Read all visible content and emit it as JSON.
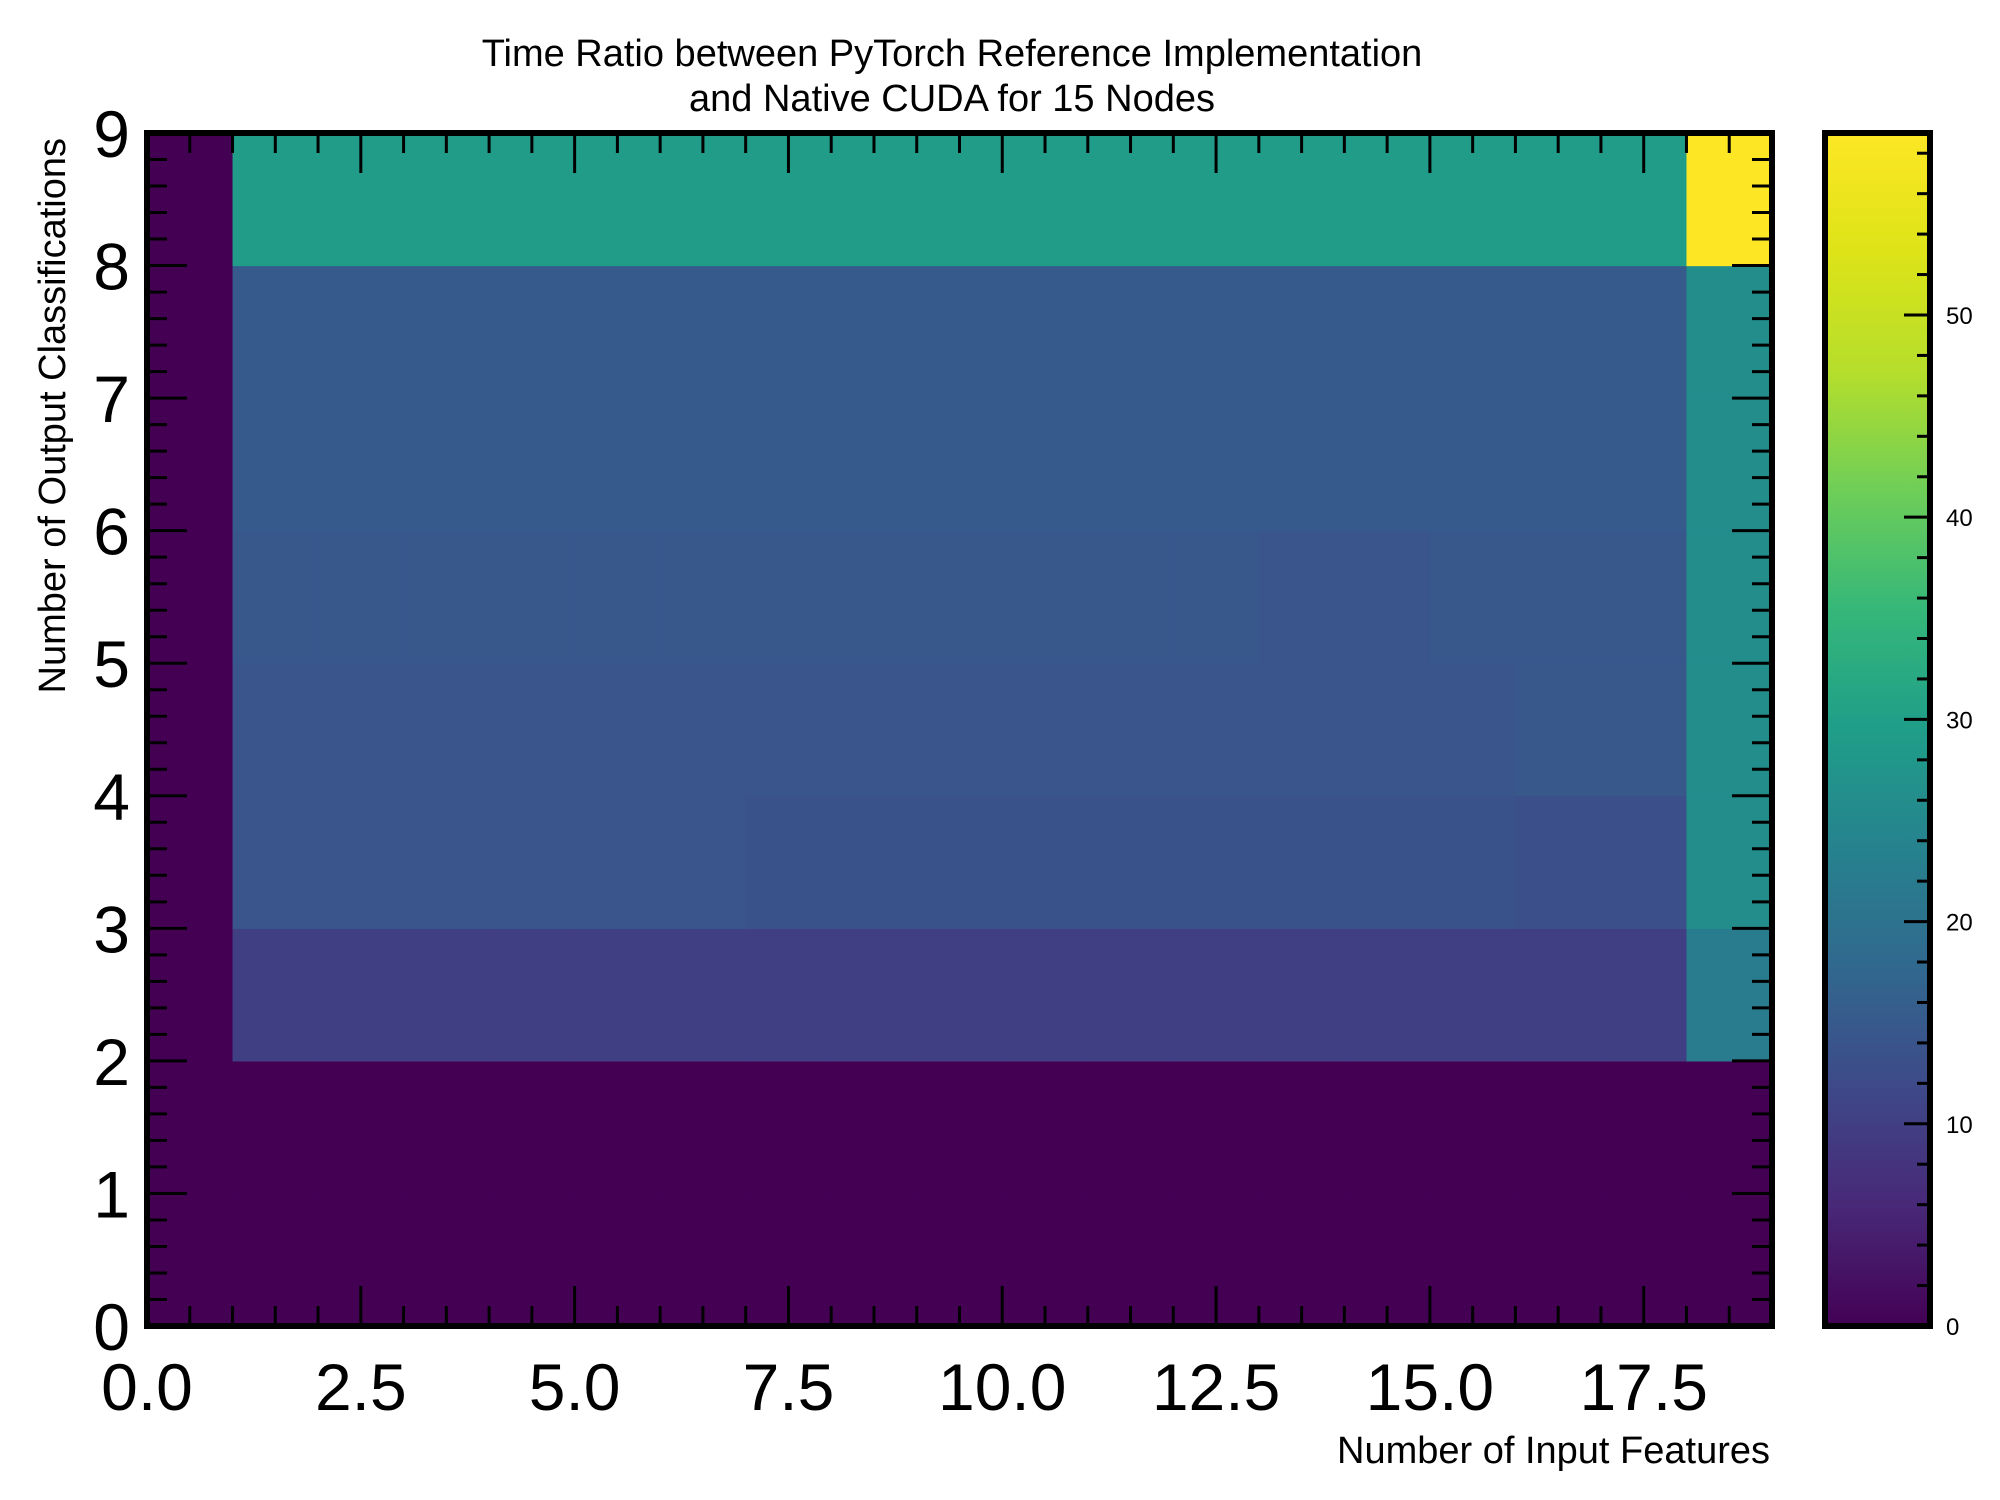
{
  "chart_data": {
    "type": "heatmap",
    "title": [
      "Time Ratio between PyTorch Reference Implementation",
      "and Native CUDA for 15 Nodes"
    ],
    "xlabel": "Number of Input Features",
    "ylabel": "Number of Output Classifications",
    "xlim": [
      0,
      19
    ],
    "ylim": [
      0,
      9
    ],
    "x_ticks": [
      "0.0",
      "2.5",
      "5.0",
      "7.5",
      "10.0",
      "12.5",
      "15.0",
      "17.5"
    ],
    "x_tick_values": [
      0,
      2.5,
      5,
      7.5,
      10,
      12.5,
      15,
      17.5
    ],
    "y_ticks": [
      "0",
      "1",
      "2",
      "3",
      "4",
      "5",
      "6",
      "7",
      "8",
      "9"
    ],
    "y_tick_values": [
      0,
      1,
      2,
      3,
      4,
      5,
      6,
      7,
      8,
      9
    ],
    "x_edges": [
      0,
      1,
      2,
      3,
      4,
      5,
      6,
      7,
      8,
      9,
      10,
      11,
      12,
      13,
      14,
      15,
      16,
      17,
      18,
      19
    ],
    "y_edges": [
      0,
      1,
      2,
      3,
      4,
      5,
      6,
      7,
      8,
      9
    ],
    "colormap": "viridis",
    "colorbar_range": [
      0,
      59
    ],
    "colorbar_ticks": [
      "0",
      "10",
      "20",
      "30",
      "40",
      "50"
    ],
    "colorbar_tick_values": [
      0,
      10,
      20,
      30,
      40,
      50
    ],
    "z_rows_bottom_to_top": [
      [
        0,
        0,
        0,
        0,
        0,
        0,
        0,
        0,
        0,
        0,
        0,
        0,
        0,
        0,
        0,
        0,
        0,
        0,
        0
      ],
      [
        0,
        0,
        0,
        0,
        0,
        0,
        0,
        0,
        0,
        0,
        0,
        0,
        0,
        0,
        0,
        0,
        0,
        0,
        0
      ],
      [
        0,
        10,
        10,
        10,
        10,
        10,
        10,
        10,
        10,
        10,
        10,
        10,
        10,
        10,
        10,
        10,
        10,
        10,
        22
      ],
      [
        0,
        14,
        14,
        14,
        14,
        14,
        14,
        13.5,
        13.5,
        13.5,
        13.5,
        13.5,
        13.5,
        13.5,
        13.5,
        13.5,
        13,
        13,
        26
      ],
      [
        0,
        14,
        14,
        14,
        14,
        14,
        14,
        14,
        14,
        14,
        14,
        14,
        14,
        14,
        14,
        14,
        14.5,
        14.5,
        26
      ],
      [
        0,
        14.5,
        14.5,
        14.5,
        14.5,
        14.5,
        14.5,
        14.5,
        14.5,
        14.5,
        14.5,
        14.5,
        14.5,
        14,
        14,
        14.5,
        14.5,
        14.5,
        26
      ],
      [
        0,
        15,
        15,
        15,
        15,
        15,
        15,
        15,
        15,
        15,
        15,
        15,
        15,
        15,
        15,
        15,
        15,
        15,
        26
      ],
      [
        0,
        15,
        15,
        15,
        15,
        15,
        15,
        15,
        15,
        15,
        15,
        15,
        15,
        15,
        15,
        15,
        15,
        15,
        26
      ],
      [
        0,
        29,
        29,
        29,
        29,
        29,
        29,
        29,
        29,
        29,
        29,
        29,
        29,
        29,
        29,
        29,
        29,
        29,
        59
      ]
    ]
  }
}
